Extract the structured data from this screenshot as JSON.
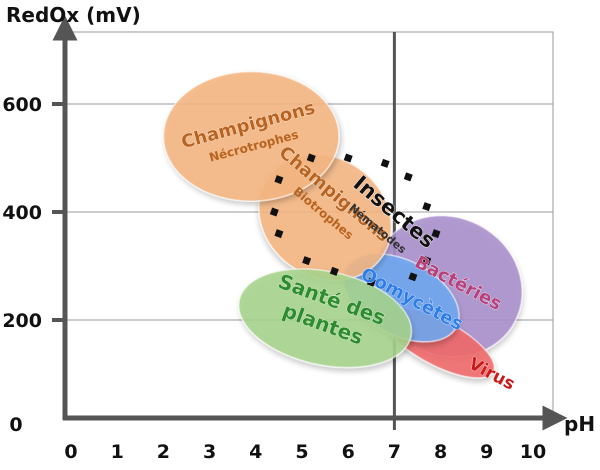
{
  "chart_data": {
    "type": "scatter",
    "title": "",
    "ylabel": "RedOx (mV)",
    "xlabel": "pH",
    "xlim": [
      0,
      10
    ],
    "x_ticks": [
      "0",
      "1",
      "2",
      "3",
      "4",
      "5",
      "6",
      "7",
      "8",
      "9",
      "10"
    ],
    "y_ticks": [
      {
        "value": 0,
        "label": "0"
      },
      {
        "value": 200,
        "label": "200"
      },
      {
        "value": 400,
        "label": "400"
      },
      {
        "value": 600,
        "label": "600"
      }
    ],
    "grid": true,
    "reference_lines": {
      "x": 7
    },
    "regions": [
      {
        "name": "Bactéries",
        "ph_range": [
          6.5,
          9.8
        ],
        "redox_range": [
          130,
          390
        ],
        "fill": "#a890cc",
        "label_color": "#b5407a",
        "label_angle": 28
      },
      {
        "name": "Virus",
        "ph_range": [
          6.6,
          9.3
        ],
        "redox_range": [
          110,
          200
        ],
        "fill": "#f06a6a",
        "label_color": "#cc1a1a",
        "label_angle": 28
      },
      {
        "name": "Oomycètes",
        "ph_range": [
          5.8,
          8.5
        ],
        "redox_range": [
          170,
          310
        ],
        "fill": "#6fa8f0",
        "label_color": "#2f7ee8",
        "label_angle": 28
      },
      {
        "name": "Champignons",
        "sublabel": "Biotrophes",
        "ph_range": [
          4.0,
          7.0
        ],
        "redox_range": [
          280,
          500
        ],
        "fill": "#f5b581",
        "label_color": "#b86420",
        "label_angle": 40
      },
      {
        "name": "Champignons",
        "sublabel": "Nécrotrophes",
        "ph_range": [
          2.0,
          5.8
        ],
        "redox_range": [
          420,
          660
        ],
        "fill": "#f5b581",
        "label_color": "#b86420",
        "label_angle": -15
      },
      {
        "name": "Santé des plantes",
        "label_lines": [
          "Santé des",
          "plantes"
        ],
        "ph_range": [
          3.6,
          7.4
        ],
        "redox_range": [
          110,
          290
        ],
        "fill": "#a6d48c",
        "label_color": "#2d8c2d",
        "label_angle": 20
      }
    ],
    "insect_marker_path": {
      "name": "Insectes",
      "sublabel": "Nématodes",
      "label_color": "#111111",
      "sublabel_color": "#333333",
      "label_angle": 40,
      "points": [
        {
          "x": 4.5,
          "y": 360
        },
        {
          "x": 4.4,
          "y": 400
        },
        {
          "x": 4.5,
          "y": 460
        },
        {
          "x": 5.2,
          "y": 500
        },
        {
          "x": 6.0,
          "y": 500
        },
        {
          "x": 6.8,
          "y": 490
        },
        {
          "x": 7.3,
          "y": 465
        },
        {
          "x": 7.7,
          "y": 410
        },
        {
          "x": 7.9,
          "y": 360
        },
        {
          "x": 7.7,
          "y": 310
        },
        {
          "x": 7.4,
          "y": 280
        },
        {
          "x": 6.5,
          "y": 270
        },
        {
          "x": 5.7,
          "y": 290
        },
        {
          "x": 5.1,
          "y": 310
        }
      ]
    }
  }
}
